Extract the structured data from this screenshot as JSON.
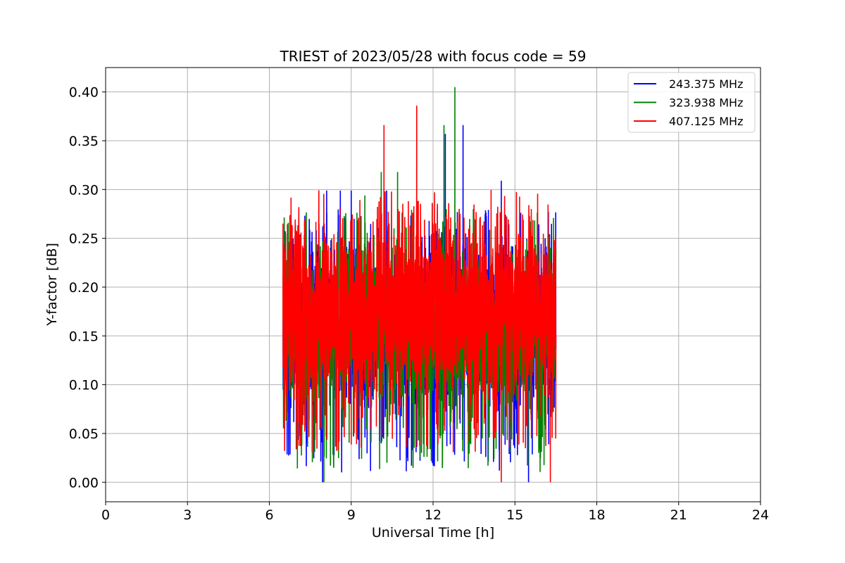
{
  "chart_data": {
    "type": "line",
    "title": "TRIEST of 2023/05/28 with focus code = 59",
    "xlabel": "Universal Time [h]",
    "ylabel": "Y-factor [dB]",
    "xlim": [
      0,
      24
    ],
    "ylim": [
      -0.02,
      0.425
    ],
    "xticks": [
      0,
      3,
      6,
      9,
      12,
      15,
      18,
      21,
      24
    ],
    "yticks": [
      0.0,
      0.05,
      0.1,
      0.15,
      0.2,
      0.25,
      0.3,
      0.35,
      0.4
    ],
    "ytick_labels": [
      "0.00",
      "0.05",
      "0.10",
      "0.15",
      "0.20",
      "0.25",
      "0.30",
      "0.35",
      "0.40"
    ],
    "grid": true,
    "legend_position": "top-right",
    "x_range_of_data": [
      6.5,
      16.5
    ],
    "series": [
      {
        "name": "243.375 MHz",
        "color": "#0000ff",
        "min": 0.0,
        "max": 0.366,
        "typical_range": [
          0.08,
          0.23
        ],
        "peaks": [
          {
            "x": 8.1,
            "y": 0.299
          },
          {
            "x": 8.6,
            "y": 0.299
          },
          {
            "x": 9.0,
            "y": 0.299
          },
          {
            "x": 12.45,
            "y": 0.357
          },
          {
            "x": 13.1,
            "y": 0.366
          },
          {
            "x": 14.5,
            "y": 0.309
          },
          {
            "x": 10.3,
            "y": 0.299
          },
          {
            "x": 7.95,
            "y": 0.0
          },
          {
            "x": 15.5,
            "y": 0.0
          }
        ]
      },
      {
        "name": "323.938 MHz",
        "color": "#008000",
        "min": 0.0,
        "max": 0.405,
        "typical_range": [
          0.08,
          0.23
        ],
        "peaks": [
          {
            "x": 10.1,
            "y": 0.318
          },
          {
            "x": 10.7,
            "y": 0.318
          },
          {
            "x": 12.4,
            "y": 0.366
          },
          {
            "x": 12.8,
            "y": 0.405
          },
          {
            "x": 9.5,
            "y": 0.294
          },
          {
            "x": 8.0,
            "y": 0.0
          }
        ]
      },
      {
        "name": "407.125 MHz",
        "color": "#ff0000",
        "min": 0.0,
        "max": 0.386,
        "typical_range": [
          0.1,
          0.25
        ],
        "peaks": [
          {
            "x": 10.2,
            "y": 0.366
          },
          {
            "x": 11.4,
            "y": 0.386
          },
          {
            "x": 6.5,
            "y": 0.265
          },
          {
            "x": 15.6,
            "y": 0.28
          },
          {
            "x": 14.5,
            "y": 0.0
          },
          {
            "x": 16.3,
            "y": 0.0
          }
        ]
      }
    ]
  }
}
